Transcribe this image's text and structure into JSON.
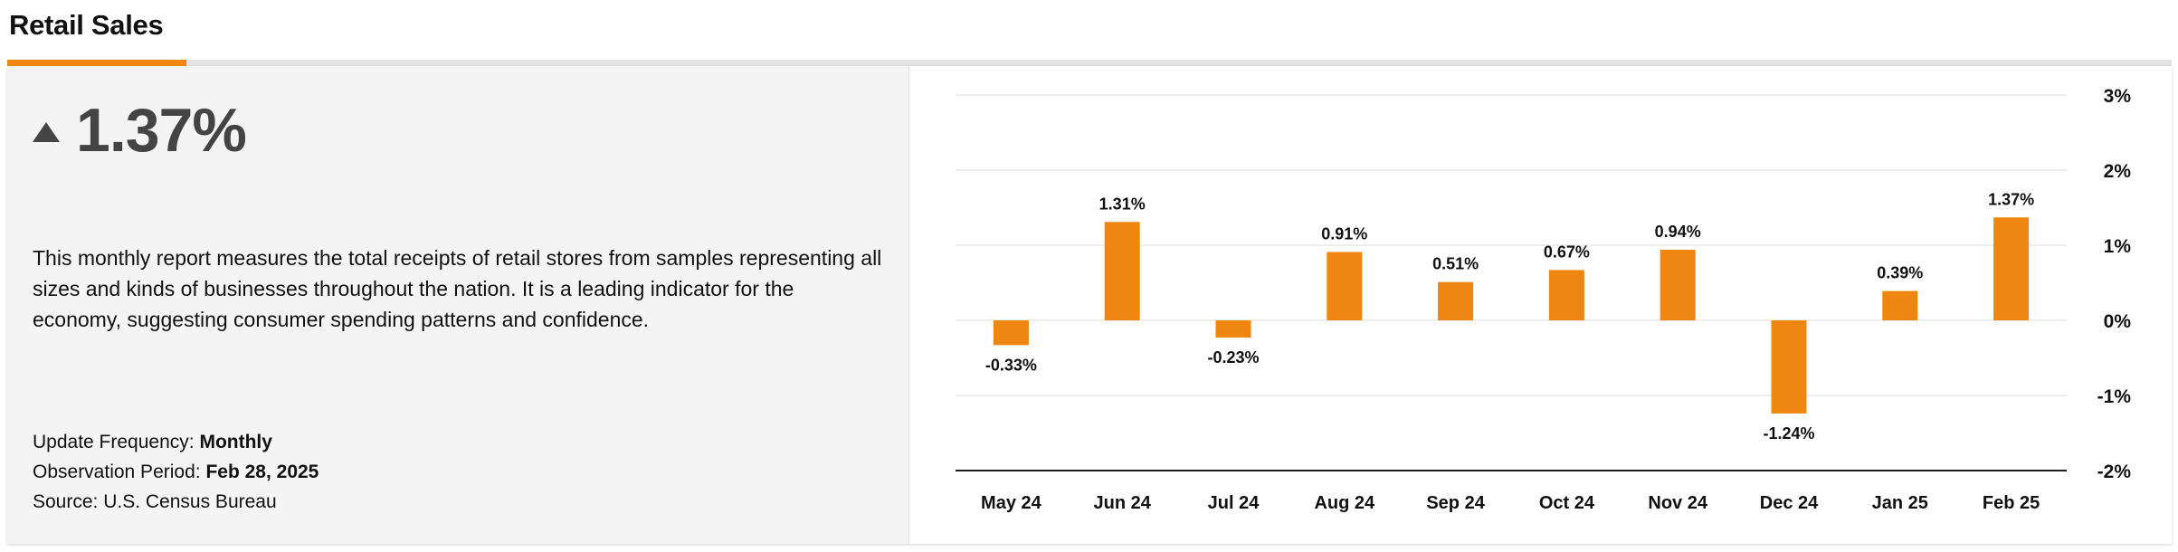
{
  "page_title": "Retail Sales",
  "headline": {
    "direction_icon": "triangle-up-icon",
    "value": "1.37%"
  },
  "description": "This monthly report measures the total receipts of retail stores from samples representing all sizes and kinds of businesses throughout the nation. It is a leading indicator for the economy, suggesting consumer spending patterns and confidence.",
  "meta": {
    "frequency_label": "Update Frequency:",
    "frequency_value": "Monthly",
    "period_label": "Observation Period:",
    "period_value": "Feb 28, 2025",
    "source_label": "Source:",
    "source_value": "U.S. Census Bureau"
  },
  "colors": {
    "accent": "#ee860f",
    "bar": "#ee860f",
    "headline_text": "#444444",
    "panel_background": "#f4f4f4"
  },
  "chart_data": {
    "type": "bar",
    "categories": [
      "May 24",
      "Jun 24",
      "Jul 24",
      "Aug 24",
      "Sep 24",
      "Oct 24",
      "Nov 24",
      "Dec 24",
      "Jan 25",
      "Feb 25"
    ],
    "values": [
      -0.33,
      1.31,
      -0.23,
      0.91,
      0.51,
      0.67,
      0.94,
      -1.24,
      0.39,
      1.37
    ],
    "data_labels": [
      "-0.33%",
      "1.31%",
      "-0.23%",
      "0.91%",
      "0.51%",
      "0.67%",
      "0.94%",
      "-1.24%",
      "0.39%",
      "1.37%"
    ],
    "y_ticks": [
      3,
      2,
      1,
      0,
      -1,
      -2
    ],
    "y_tick_labels": [
      "3%",
      "2%",
      "1%",
      "0%",
      "-1%",
      "-2%"
    ],
    "ylim": [
      -2,
      3
    ],
    "y_axis_position": "right",
    "grid": true,
    "legend": "none"
  }
}
